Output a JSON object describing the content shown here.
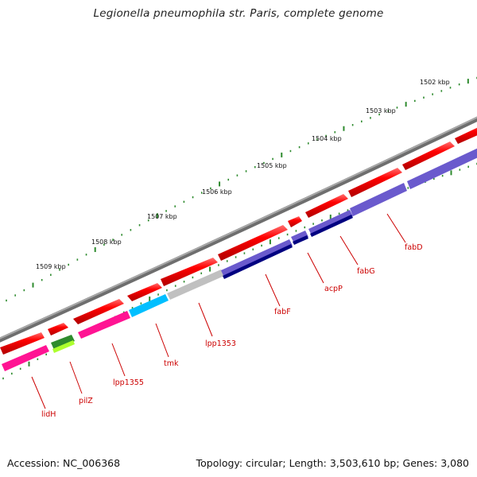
{
  "title": "Legionella pneumophila str. Paris, complete genome",
  "footer": {
    "accession": "Accession: NC_006368",
    "topology": "Topology: circular; Length: 3,503,610 bp; Genes: 3,080"
  },
  "ticks": [
    "1502 kbp",
    "1503 kbp",
    "1504 kbp",
    "1505 kbp",
    "1506 kbp",
    "1507 kbp",
    "1508 kbp",
    "1509 kbp"
  ],
  "genes": [
    {
      "name": "lidH",
      "color": "#cc0000"
    },
    {
      "name": "pilZ",
      "color": "#cc0000"
    },
    {
      "name": "lpp1355",
      "color": "#cc0000"
    },
    {
      "name": "tmk",
      "color": "#cc0000"
    },
    {
      "name": "lpp1353",
      "color": "#cc0000"
    },
    {
      "name": "fabF",
      "color": "#cc0000"
    },
    {
      "name": "acpP",
      "color": "#cc0000"
    },
    {
      "name": "fabG",
      "color": "#cc0000"
    },
    {
      "name": "fabD",
      "color": "#cc0000"
    }
  ],
  "colors": {
    "backbone": "#808080",
    "tick": "#2e8b2e",
    "cds_forward": "#ff0000",
    "magenta": "#ff1493",
    "green": "#2e8b2e",
    "cyan": "#00bfff",
    "grey": "#c0c0c0",
    "navy": "#000080",
    "slate": "#6a5acd"
  }
}
